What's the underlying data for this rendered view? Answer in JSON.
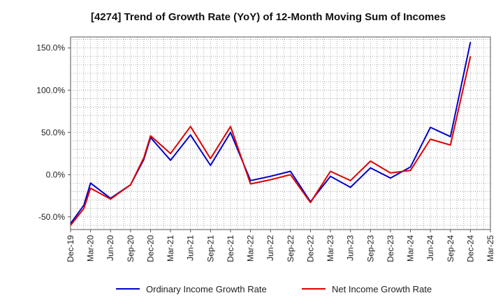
{
  "chart_data": {
    "type": "line",
    "title": "[4274]  Trend of Growth Rate (YoY) of 12-Month Moving Sum of Incomes",
    "xlabel": "",
    "ylabel": "",
    "x": [
      "Dec-19",
      "Mar-20",
      "Jun-20",
      "Sep-20",
      "Dec-20",
      "Mar-21",
      "Jun-21",
      "Sep-21",
      "Dec-21",
      "Mar-22",
      "Jun-22",
      "Sep-22",
      "Dec-22",
      "Mar-23",
      "Jun-23",
      "Sep-23",
      "Dec-23",
      "Mar-24",
      "Jun-24",
      "Sep-24",
      "Dec-24",
      "Mar-25"
    ],
    "x_tick_labels": [
      "Dec-19",
      "Mar-20",
      "Jun-20",
      "Sep-20",
      "Dec-20",
      "Mar-21",
      "Jun-21",
      "Sep-21",
      "Dec-21",
      "Mar-22",
      "Jun-22",
      "Sep-22",
      "Dec-22",
      "Mar-23",
      "Jun-23",
      "Sep-23",
      "Dec-23",
      "Mar-24",
      "Jun-24",
      "Sep-24",
      "Dec-24",
      "Mar-25"
    ],
    "y_tick_labels": [
      "-50.0%",
      "0.0%",
      "50.0%",
      "100.0%",
      "150.0%"
    ],
    "y_ticks": [
      -50,
      0,
      50,
      100,
      150
    ],
    "ylim": [
      -65,
      163
    ],
    "grid": true,
    "legend_position": "bottom",
    "series": [
      {
        "name": "Ordinary Income Growth Rate",
        "color": "#0000cc",
        "x": [
          "Dec-19",
          "Jan-20",
          "Feb-20",
          "Mar-20",
          "Apr-20",
          "May-20",
          "Jun-20",
          "Jul-20",
          "Aug-20",
          "Sep-20",
          "Oct-20",
          "Nov-20",
          "Dec-20",
          "Jan-21",
          "Feb-21",
          "Mar-21",
          "Apr-21",
          "May-21",
          "Jun-21",
          "Jul-21",
          "Aug-21",
          "Sep-21",
          "Oct-21",
          "Nov-21",
          "Dec-21",
          "Jan-22",
          "Feb-22",
          "Mar-22",
          "Apr-22",
          "May-22",
          "Jun-22",
          "Jul-22",
          "Aug-22",
          "Sep-22",
          "Oct-22",
          "Nov-22",
          "Dec-22",
          "Jan-23",
          "Feb-23",
          "Mar-23",
          "Apr-23",
          "May-23",
          "Jun-23",
          "Jul-23",
          "Aug-23",
          "Sep-23",
          "Oct-23",
          "Nov-23",
          "Dec-23",
          "Jan-24",
          "Feb-24",
          "Mar-24",
          "Apr-24",
          "May-24",
          "Jun-24",
          "Jul-24",
          "Aug-24",
          "Sep-24",
          "Oct-24",
          "Nov-24",
          "Dec-24"
        ],
        "values": [
          -58,
          null,
          -36,
          -10,
          null,
          null,
          -28,
          null,
          null,
          -12,
          null,
          18,
          44,
          null,
          null,
          17,
          null,
          null,
          47,
          null,
          null,
          11,
          null,
          null,
          50,
          null,
          null,
          -7,
          null,
          null,
          -2,
          null,
          null,
          4,
          null,
          null,
          -32,
          null,
          null,
          -2,
          null,
          null,
          -15,
          null,
          null,
          8,
          null,
          null,
          -4,
          null,
          null,
          9,
          null,
          null,
          56,
          null,
          null,
          45,
          null,
          null,
          157
        ]
      },
      {
        "name": "Net Income Growth Rate",
        "color": "#dd0000",
        "x": [
          "Dec-19",
          "Jan-20",
          "Feb-20",
          "Mar-20",
          "Apr-20",
          "May-20",
          "Jun-20",
          "Jul-20",
          "Aug-20",
          "Sep-20",
          "Oct-20",
          "Nov-20",
          "Dec-20",
          "Jan-21",
          "Feb-21",
          "Mar-21",
          "Apr-21",
          "May-21",
          "Jun-21",
          "Jul-21",
          "Aug-21",
          "Sep-21",
          "Oct-21",
          "Nov-21",
          "Dec-21",
          "Jan-22",
          "Feb-22",
          "Mar-22",
          "Apr-22",
          "May-22",
          "Jun-22",
          "Jul-22",
          "Aug-22",
          "Sep-22",
          "Oct-22",
          "Nov-22",
          "Dec-22",
          "Jan-23",
          "Feb-23",
          "Mar-23",
          "Apr-23",
          "May-23",
          "Jun-23",
          "Jul-23",
          "Aug-23",
          "Sep-23",
          "Oct-23",
          "Nov-23",
          "Dec-23",
          "Jan-24",
          "Feb-24",
          "Mar-24",
          "Apr-24",
          "May-24",
          "Jun-24",
          "Jul-24",
          "Aug-24",
          "Sep-24",
          "Oct-24",
          "Nov-24",
          "Dec-24"
        ],
        "values": [
          -60,
          null,
          -40,
          -16,
          null,
          null,
          -29,
          null,
          null,
          -12,
          null,
          20,
          46,
          null,
          null,
          25,
          null,
          null,
          57,
          null,
          null,
          19,
          null,
          null,
          57,
          null,
          null,
          -11,
          null,
          null,
          -6,
          null,
          null,
          0,
          null,
          null,
          -33,
          null,
          null,
          4,
          null,
          null,
          -7,
          null,
          null,
          16,
          null,
          null,
          2,
          null,
          null,
          5,
          null,
          null,
          42,
          null,
          null,
          35,
          null,
          null,
          140
        ]
      }
    ]
  }
}
